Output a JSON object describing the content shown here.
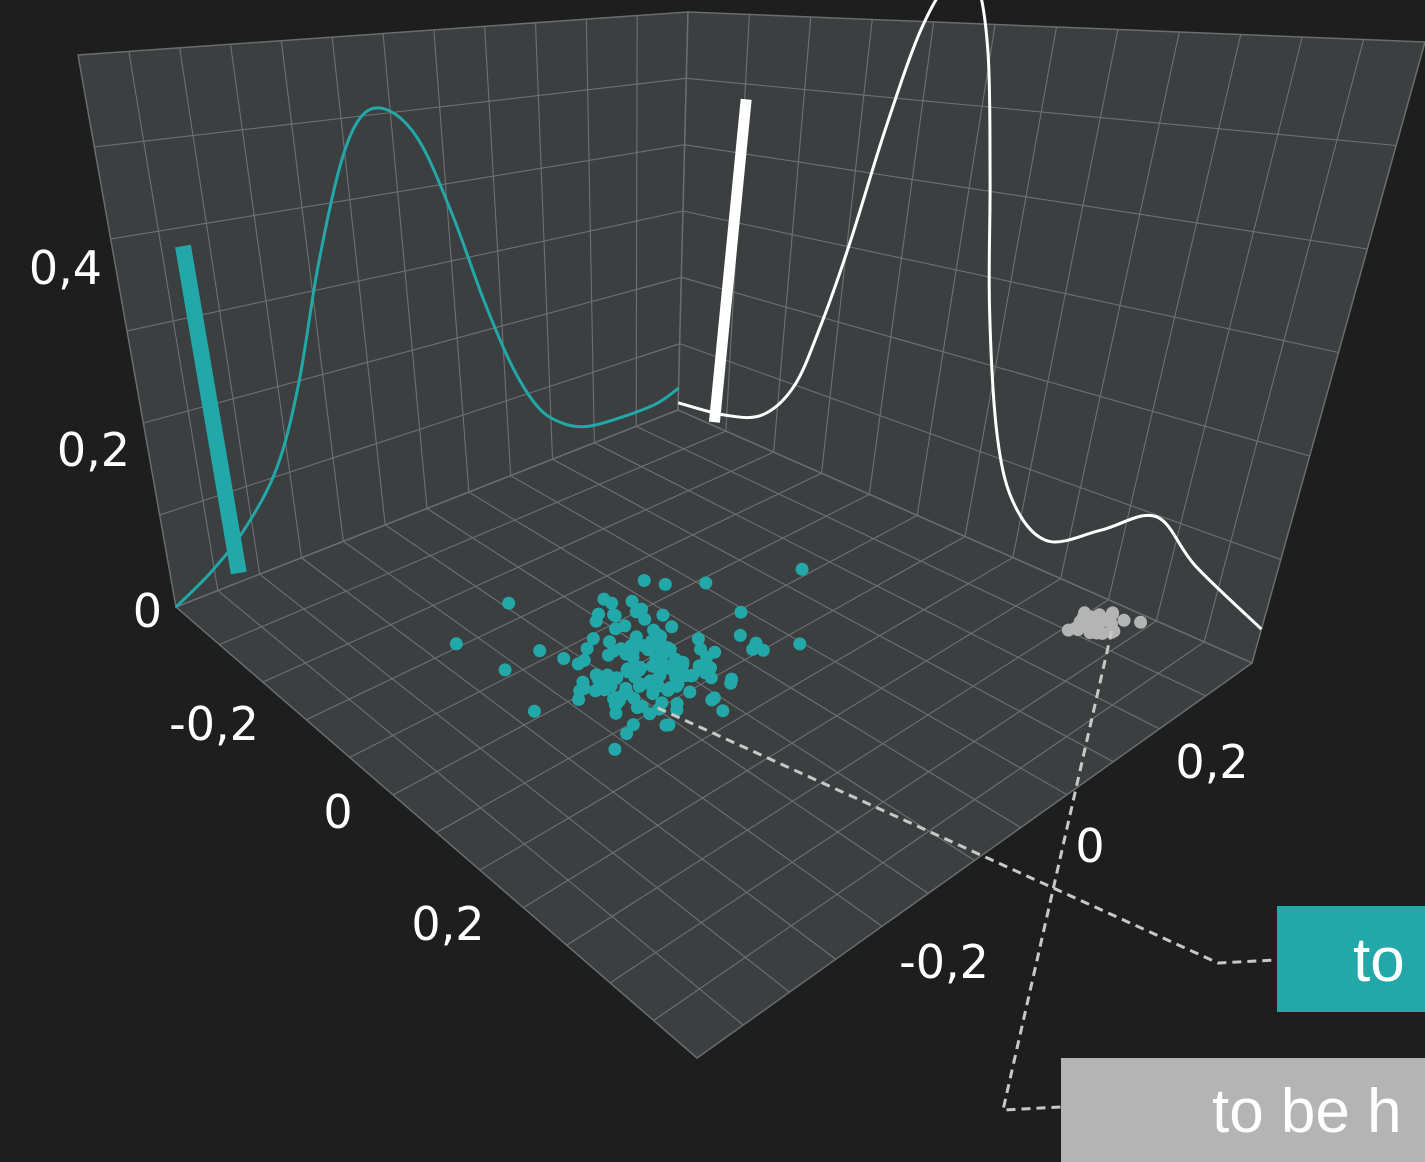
{
  "chart_data": {
    "type": "scatter",
    "projection": "3d",
    "title": "",
    "grid": true,
    "axes": {
      "x": {
        "range": [
          -0.33,
          0.33
        ],
        "ticks": [
          -0.2,
          0,
          0.2
        ],
        "tick_labels": [
          "-0,2",
          "0",
          "0,2"
        ]
      },
      "y": {
        "range": [
          -0.33,
          0.3
        ],
        "ticks": [
          -0.2,
          0,
          0.2
        ],
        "tick_labels": [
          "-0,2",
          "0",
          "0,2"
        ]
      },
      "z": {
        "range": [
          0,
          0.55
        ],
        "ticks": [
          0,
          0.2,
          0.4
        ],
        "tick_labels": [
          "0",
          "0,2",
          "0,4"
        ]
      }
    },
    "series": [
      {
        "color": "#22a8a8",
        "cluster": {
          "center": [
            -0.02,
            0.03
          ],
          "spread": [
            0.055,
            0.04
          ],
          "count": 150
        },
        "density_curve": {
          "x": [
            -0.33,
            -0.28,
            -0.23,
            -0.18,
            -0.14,
            -0.1,
            -0.06,
            -0.03,
            0.0,
            0.03,
            0.06,
            0.09,
            0.12,
            0.15,
            0.18,
            0.21,
            0.25,
            0.3,
            0.33
          ],
          "z": [
            0.0,
            0.02,
            0.05,
            0.1,
            0.18,
            0.3,
            0.41,
            0.46,
            0.46,
            0.42,
            0.33,
            0.22,
            0.13,
            0.07,
            0.04,
            0.025,
            0.02,
            0.02,
            0.03
          ]
        },
        "marginal_bar": {
          "x": -0.3,
          "y": 0.3,
          "height": 0.33
        },
        "callout": "to"
      },
      {
        "color": "#b4b4b4",
        "cluster": {
          "center": [
            0.3,
            -0.19
          ],
          "spread": [
            0.012,
            0.011
          ],
          "count": 30
        },
        "callout": "to be h"
      },
      {
        "color": "#ffffff",
        "density_curve": {
          "y": [
            0.3,
            0.25,
            0.21,
            0.18,
            0.16,
            0.14,
            0.12,
            0.1,
            0.08,
            0.06,
            0.04,
            0.02,
            0.0,
            -0.03,
            -0.06,
            -0.1,
            -0.15,
            -0.2,
            -0.25,
            -0.33
          ],
          "z": [
            0.01,
            0.02,
            0.04,
            0.09,
            0.17,
            0.28,
            0.42,
            0.54,
            0.6,
            0.6,
            0.52,
            0.38,
            0.24,
            0.11,
            0.05,
            0.03,
            0.06,
            0.09,
            0.06,
            0.03
          ]
        },
        "marginal_bar": {
          "x": -0.33,
          "y": 0.17,
          "height": 0.4
        }
      }
    ]
  }
}
